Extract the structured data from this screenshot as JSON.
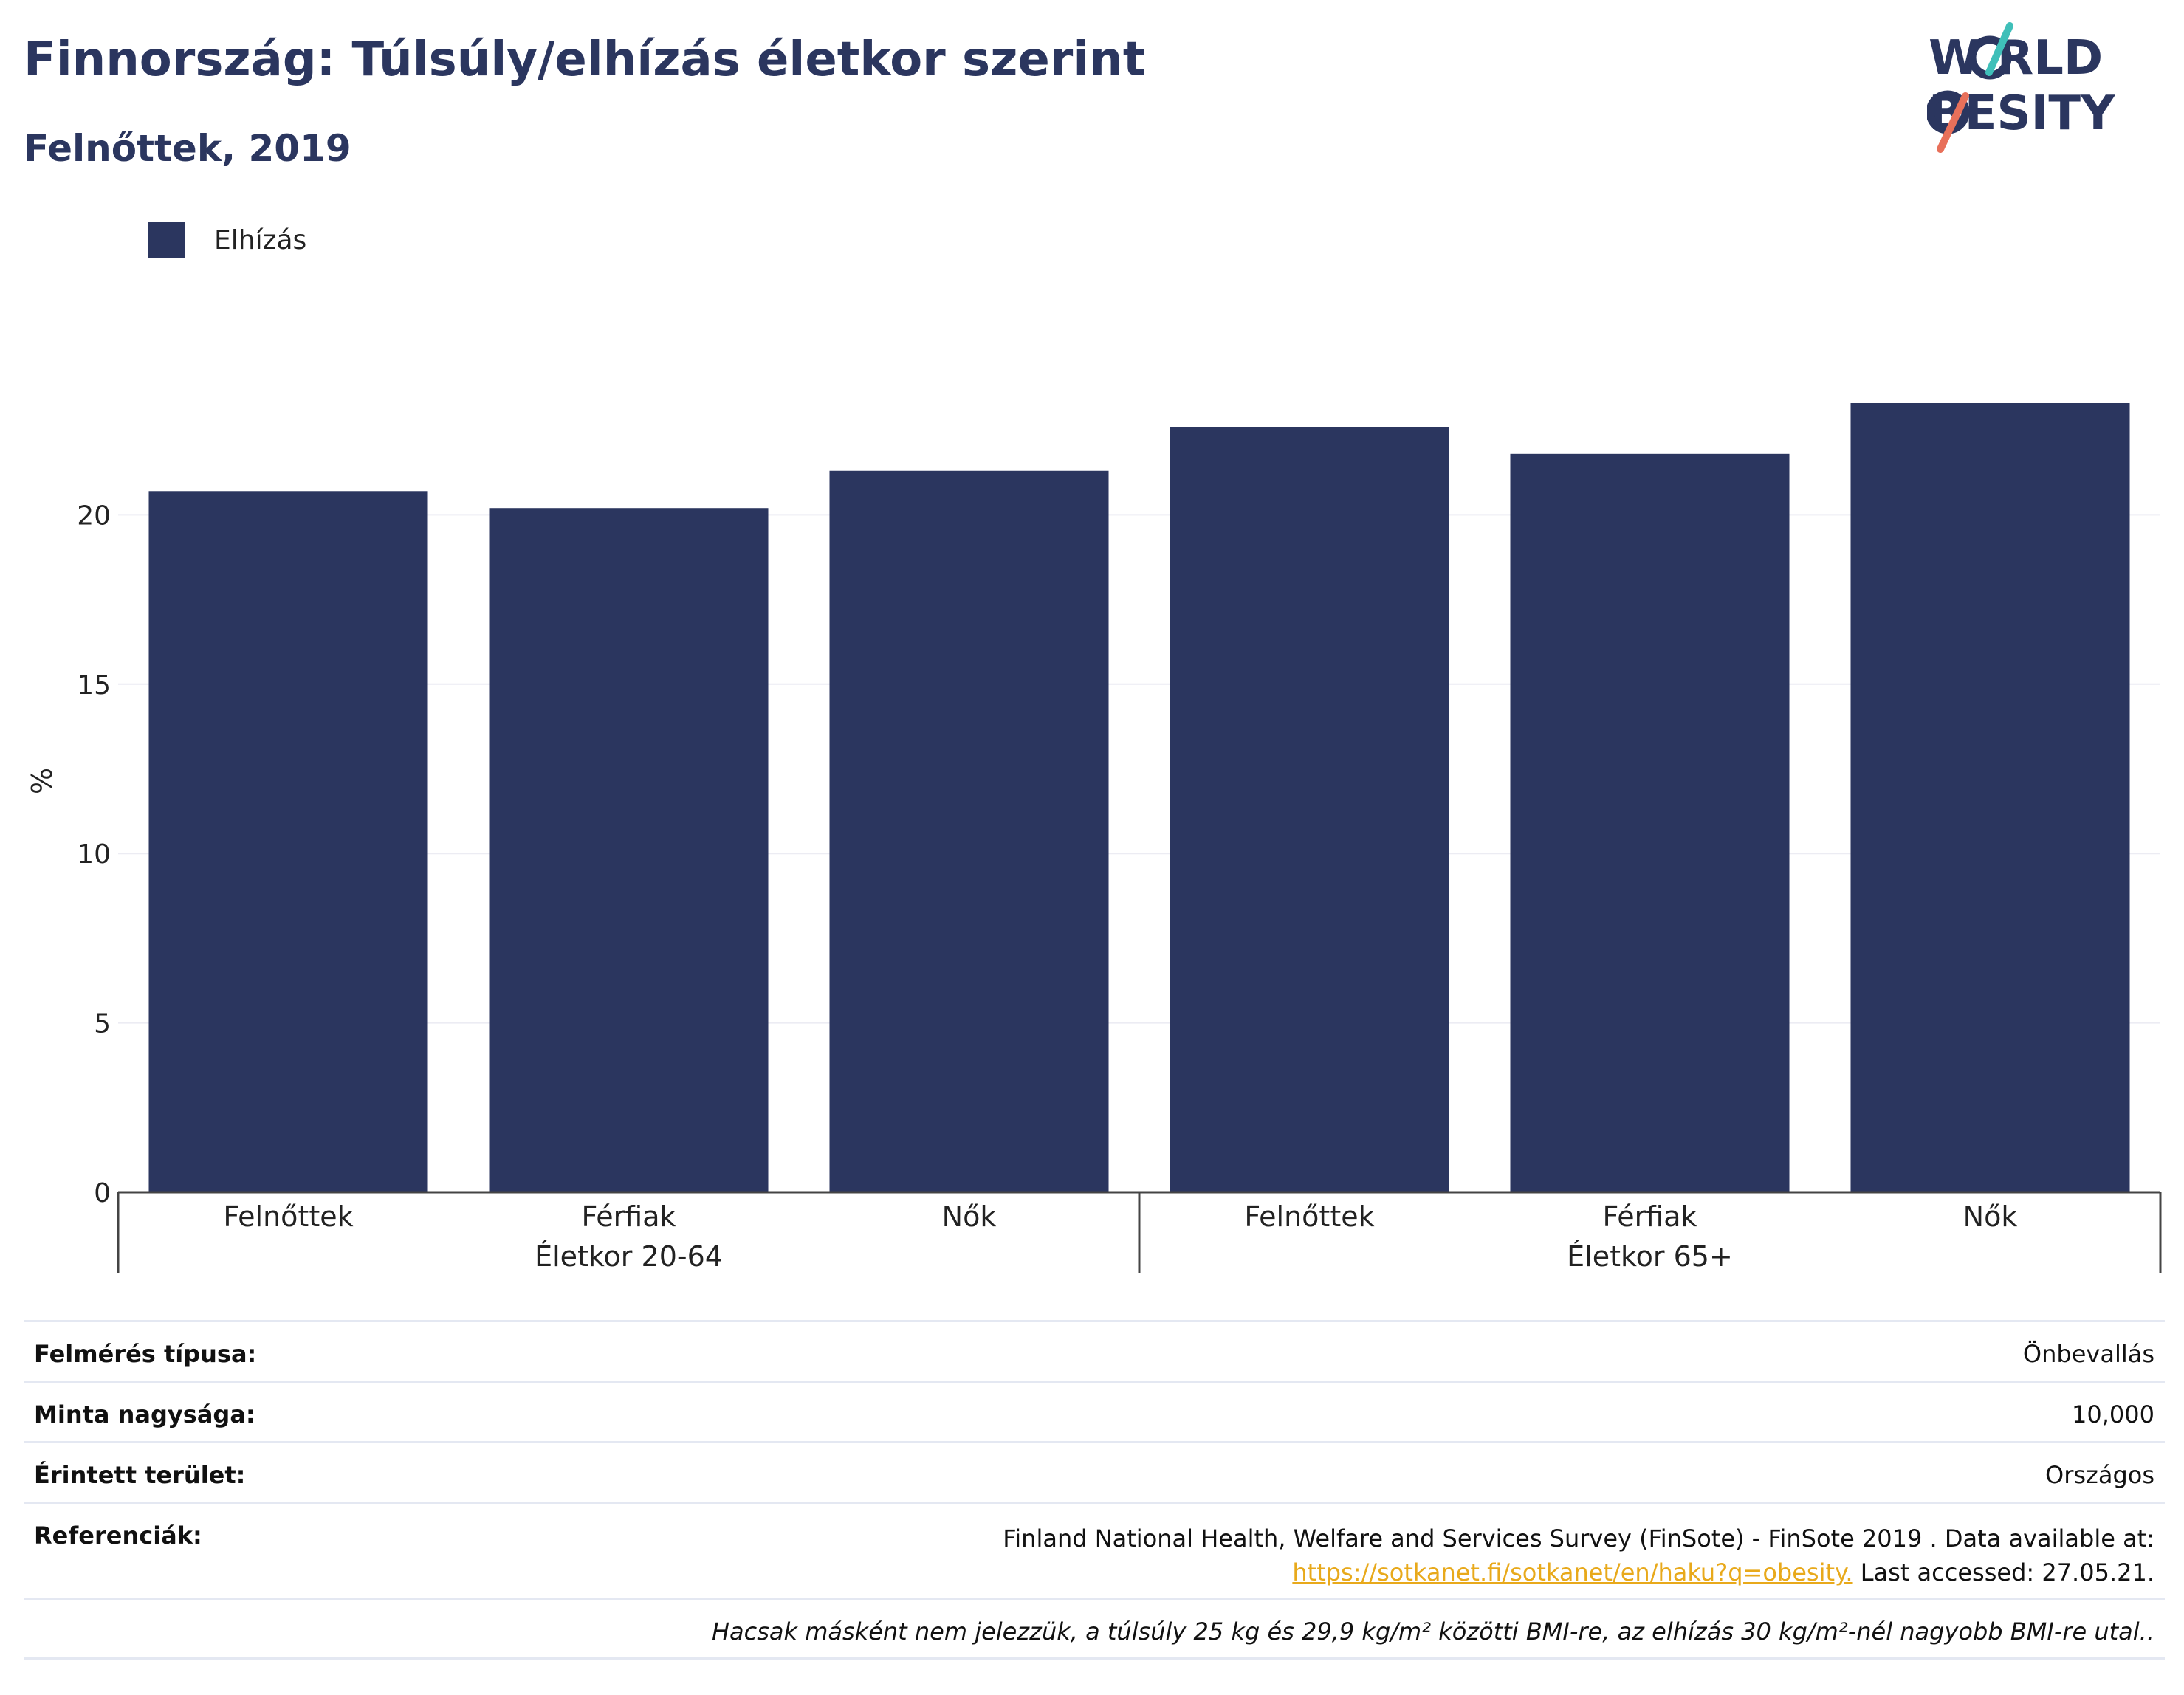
{
  "header": {
    "title": "Finnország: Túlsúly/elhízás életkor szerint",
    "subtitle": "Felnőttek, 2019"
  },
  "logo": {
    "line1": "W RLD",
    "line2": " BESITY",
    "text": "WORLD OBESITY",
    "colors": {
      "text": "#2b365f",
      "accent_teal": "#3fbfb9",
      "accent_coral": "#e8705a"
    }
  },
  "legend": {
    "items": [
      {
        "label": "Elhízás",
        "color": "#2b365f"
      }
    ]
  },
  "chart_data": {
    "type": "bar",
    "categories": [
      "Felnőttek",
      "Férfiak",
      "Nők",
      "Felnőttek",
      "Férfiak",
      "Nők"
    ],
    "groups": [
      {
        "label": "Életkor 20-64",
        "categories": [
          "Felnőttek",
          "Férfiak",
          "Nők"
        ]
      },
      {
        "label": "Életkor 65+",
        "categories": [
          "Felnőttek",
          "Férfiak",
          "Nők"
        ]
      }
    ],
    "series": [
      {
        "name": "Elhízás",
        "values": [
          20.7,
          20.2,
          21.3,
          22.6,
          21.8,
          23.3
        ],
        "color": "#2b365f"
      }
    ],
    "ylabel": "%",
    "ylim": [
      0,
      25
    ],
    "yticks": [
      0,
      5,
      10,
      15,
      20
    ],
    "grid": true,
    "legend_position": "top-left"
  },
  "meta": {
    "rows": [
      {
        "label": "Felmérés típusa:",
        "value": "Önbevallás"
      },
      {
        "label": "Minta nagysága:",
        "value": "10,000"
      },
      {
        "label": "Érintett terület:",
        "value": "Országos"
      }
    ],
    "references": {
      "label": "Referenciák:",
      "line1": "Finland National Health, Welfare and Services Survey (FinSote) - FinSote 2019 . Data available at:",
      "link": "https://sotkanet.fi/sotkanet/en/haku?q=obesity.",
      "accessed": " Last accessed: 27.05.21."
    },
    "note": "Hacsak másként nem jelezzük, a túlsúly 25 kg és 29,9 kg/m² közötti BMI-re, az elhízás 30 kg/m²-nél nagyobb BMI-re utal.."
  }
}
